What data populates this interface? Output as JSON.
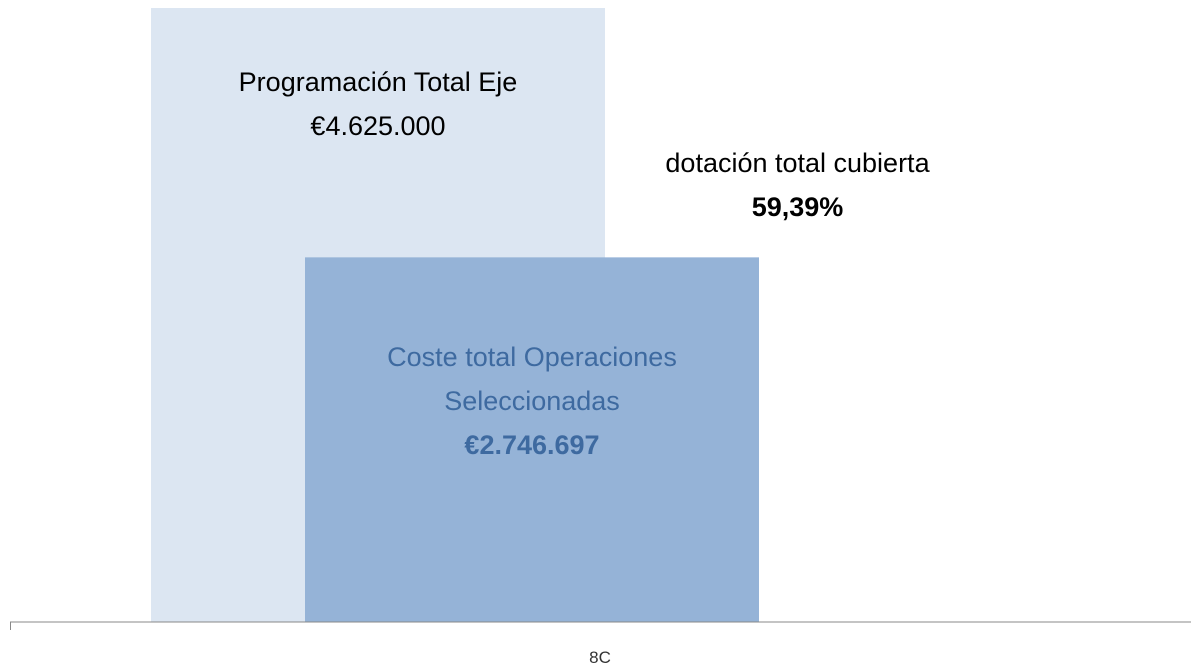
{
  "chart_data": {
    "type": "bar",
    "overlap": true,
    "categories": [
      "8C"
    ],
    "series": [
      {
        "name": "Programación Total Eje",
        "color": "#dce6f2",
        "label_color": "#000000",
        "values": [
          4625000
        ],
        "value_labels": [
          "€4.625.000"
        ]
      },
      {
        "name": "Coste total Operaciones Seleccionadas",
        "color": "#95b3d7",
        "label_color": "#3e6aa0",
        "values": [
          2746697
        ],
        "value_labels": [
          "€2.746.697"
        ]
      }
    ],
    "annotation": [
      "dotación total cubierta",
      "59,39%"
    ]
  }
}
